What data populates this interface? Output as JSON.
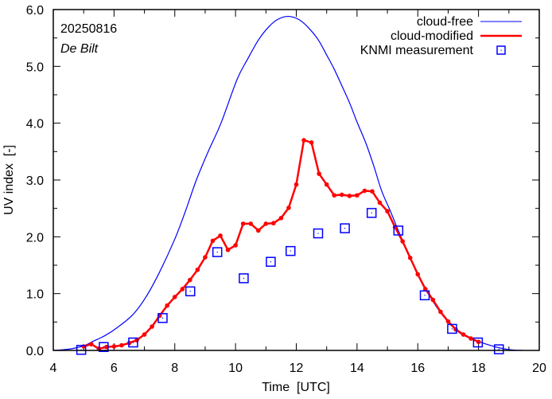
{
  "chart_data": {
    "type": "line",
    "annotations": {
      "date": "20250816",
      "location": "De Bilt"
    },
    "xlabel": "Time  [UTC]",
    "ylabel": "UV index  [-]",
    "xlim": [
      4,
      20
    ],
    "ylim": [
      0,
      6
    ],
    "x_ticks": [
      4,
      6,
      8,
      10,
      12,
      14,
      16,
      18,
      20
    ],
    "x_tick_labels": [
      "4",
      "6",
      "8",
      "10",
      "12",
      "14",
      "16",
      "18",
      "20"
    ],
    "y_ticks": [
      0,
      1,
      2,
      3,
      4,
      5,
      6
    ],
    "y_tick_labels": [
      "0.0",
      "1.0",
      "2.0",
      "3.0",
      "4.0",
      "5.0",
      "6.0"
    ],
    "grid": false,
    "legend_position": "top-right",
    "colors": {
      "cloud_free": "#0000ff",
      "cloud_modified": "#ff0000",
      "measurement": "#0000ff",
      "axis": "#000000"
    },
    "series": [
      {
        "name": "cloud-free",
        "style": "line",
        "x": [
          4.0,
          4.26,
          4.6,
          5.0,
          5.31,
          5.7,
          6.1,
          6.62,
          7.05,
          7.5,
          8.0,
          8.35,
          8.71,
          9.1,
          9.52,
          10.05,
          10.4,
          10.76,
          11.1,
          11.4,
          11.74,
          12.1,
          12.4,
          12.72,
          13.0,
          13.24,
          13.5,
          13.76,
          14.0,
          14.29,
          14.55,
          14.81,
          15.1,
          15.36,
          15.7,
          16.0,
          16.3,
          16.6,
          17.0,
          17.4,
          17.8,
          18.2,
          18.73,
          19.1,
          19.43
        ],
        "y": [
          0.0,
          0.01,
          0.03,
          0.08,
          0.16,
          0.26,
          0.4,
          0.63,
          0.94,
          1.38,
          1.96,
          2.45,
          3.0,
          3.5,
          4.0,
          4.77,
          5.13,
          5.47,
          5.7,
          5.83,
          5.88,
          5.82,
          5.68,
          5.47,
          5.2,
          4.96,
          4.66,
          4.35,
          4.02,
          3.65,
          3.25,
          2.81,
          2.45,
          2.11,
          1.7,
          1.35,
          1.05,
          0.78,
          0.5,
          0.3,
          0.2,
          0.12,
          0.04,
          0.01,
          0.0
        ]
      },
      {
        "name": "cloud-modified",
        "style": "line-points",
        "x": [
          5.0,
          5.25,
          5.5,
          5.75,
          6.0,
          6.25,
          6.5,
          6.75,
          7.0,
          7.25,
          7.5,
          7.75,
          8.0,
          8.25,
          8.5,
          8.75,
          9.0,
          9.25,
          9.5,
          9.75,
          10.0,
          10.25,
          10.5,
          10.75,
          11.0,
          11.25,
          11.5,
          11.75,
          12.0,
          12.25,
          12.5,
          12.75,
          13.0,
          13.25,
          13.5,
          13.75,
          14.0,
          14.25,
          14.5,
          14.75,
          15.0,
          15.25,
          15.5,
          15.75,
          16.0,
          16.25,
          16.5,
          16.75,
          17.0,
          17.25,
          17.5,
          17.75,
          18.0
        ],
        "y": [
          0.07,
          0.11,
          0.03,
          0.06,
          0.07,
          0.09,
          0.13,
          0.18,
          0.28,
          0.42,
          0.61,
          0.79,
          0.94,
          1.08,
          1.24,
          1.42,
          1.64,
          1.93,
          2.02,
          1.77,
          1.85,
          2.23,
          2.23,
          2.11,
          2.23,
          2.24,
          2.33,
          2.51,
          2.92,
          3.7,
          3.66,
          3.11,
          2.92,
          2.73,
          2.74,
          2.72,
          2.73,
          2.81,
          2.8,
          2.6,
          2.45,
          2.17,
          1.92,
          1.63,
          1.34,
          1.08,
          0.89,
          0.68,
          0.51,
          0.37,
          0.28,
          0.21,
          0.15
        ]
      },
      {
        "name": "KNMI measurement",
        "style": "markers",
        "x": [
          4.92,
          5.66,
          6.63,
          7.6,
          8.51,
          9.4,
          10.27,
          11.16,
          11.81,
          12.72,
          13.6,
          14.48,
          15.36,
          16.23,
          17.13,
          17.98,
          18.67
        ],
        "y": [
          0.01,
          0.06,
          0.14,
          0.57,
          1.04,
          1.73,
          1.27,
          1.56,
          1.75,
          2.06,
          2.15,
          2.42,
          2.11,
          0.97,
          0.38,
          0.14,
          0.02
        ]
      }
    ]
  }
}
